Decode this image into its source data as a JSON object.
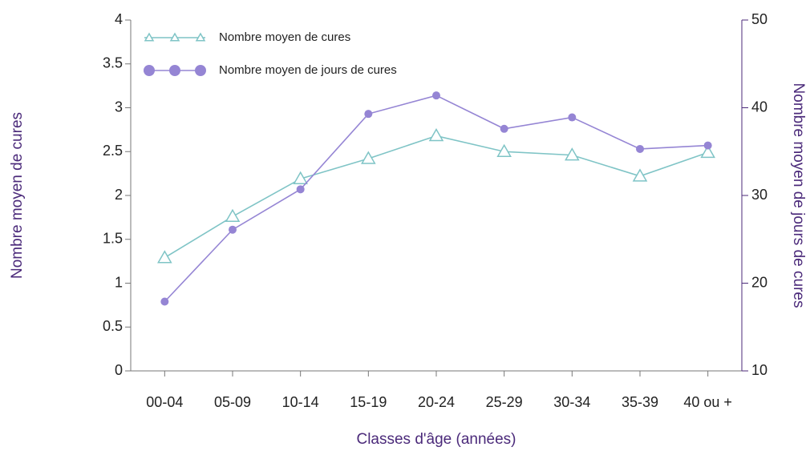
{
  "chart_data": {
    "type": "line",
    "categories": [
      "00-04",
      "05-09",
      "10-14",
      "15-19",
      "20-24",
      "25-29",
      "30-34",
      "35-39",
      "40 ou +"
    ],
    "series": [
      {
        "name": "Nombre moyen de cures",
        "color": "#7fc4c6",
        "marker": "triangle",
        "values": [
          1.29,
          1.76,
          2.19,
          2.42,
          2.68,
          2.5,
          2.46,
          2.22,
          2.49
        ]
      },
      {
        "name": "Nombre moyen de jours de cures",
        "color": "#9585d4",
        "marker": "circle",
        "axis": "y2",
        "values": [
          17.9,
          26.1,
          30.7,
          39.3,
          41.4,
          37.6,
          38.9,
          35.3,
          35.7
        ]
      }
    ],
    "ylim": [
      0,
      4
    ],
    "yticks": [
      0,
      0.5,
      1,
      1.5,
      2,
      2.5,
      3,
      3.5,
      4
    ],
    "y2lim": [
      10,
      50
    ],
    "y2ticks": [
      10,
      20,
      30,
      40,
      50
    ],
    "ylabel": "Nombre moyen de cures",
    "y2label": "Nombre moyen de jours de cures",
    "xlabel": "Classes d'âge (années)",
    "legend": "upper left",
    "grid": false
  }
}
